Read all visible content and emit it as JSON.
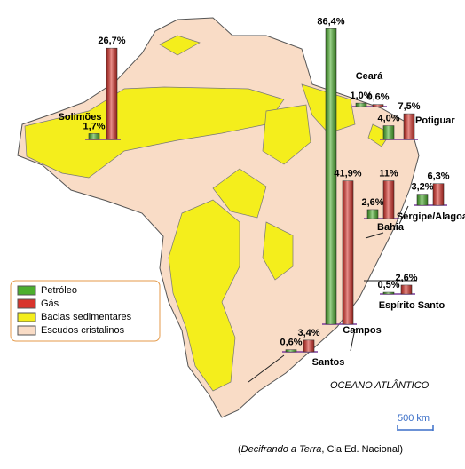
{
  "map": {
    "legend": [
      {
        "label": "Petróleo",
        "color": "#4caf2e"
      },
      {
        "label": "Gás",
        "color": "#d8342c"
      },
      {
        "label": "Bacias sedimentares",
        "color": "#f4ee1c"
      },
      {
        "label": "Escudos cristalinos",
        "color": "#f9dcc6"
      }
    ],
    "regions": [
      {
        "name": "Solimões",
        "values": [
          1.7,
          26.7
        ],
        "value_labels": [
          "1,7%",
          "26,7%"
        ]
      },
      {
        "name": "Ceará",
        "values": [
          1.0,
          0.6
        ],
        "value_labels": [
          "1,0%",
          "0,6%"
        ]
      },
      {
        "name": "Potiguar",
        "values": [
          4.0,
          7.5
        ],
        "value_labels": [
          "4,0%",
          "7,5%"
        ]
      },
      {
        "name": "Sergipe/Alagoas",
        "values": [
          3.2,
          6.3
        ],
        "value_labels": [
          "3,2%",
          "6,3%"
        ]
      },
      {
        "name": "Bahia",
        "values": [
          2.6,
          11
        ],
        "value_labels": [
          "2,6%",
          "11%"
        ]
      },
      {
        "name": "Espírito Santo",
        "values": [
          0.5,
          2.6
        ],
        "value_labels": [
          "0,5%",
          "2,6%"
        ]
      },
      {
        "name": "Campos",
        "values": [
          86.4,
          41.9
        ],
        "value_labels": [
          "86,4%",
          "41,9%"
        ]
      },
      {
        "name": "Santos",
        "values": [
          0.6,
          3.4
        ],
        "value_labels": [
          "0,6%",
          "3,4%"
        ]
      }
    ],
    "ocean": "OCEANO ATLÂNTICO",
    "scale": "500 km",
    "source": {
      "open": "(",
      "title": "Decifrando a Terra",
      "rest": ", Cia Ed. Nacional)"
    }
  }
}
